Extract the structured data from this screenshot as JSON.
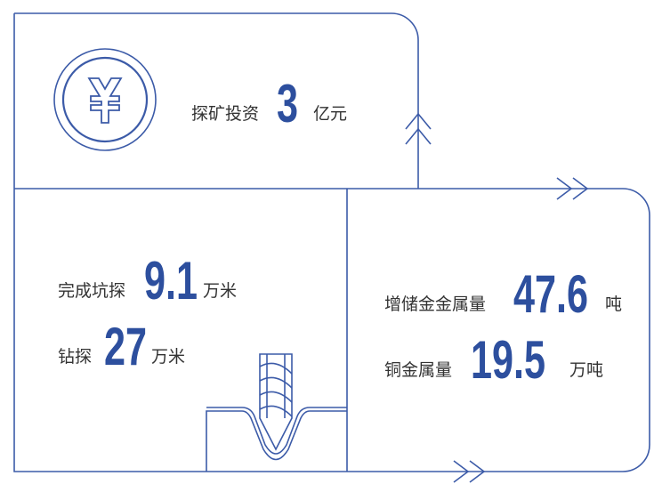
{
  "items": [
    {
      "label": "探矿投资",
      "number": "3",
      "unit": "亿元"
    },
    {
      "label": "完成坑探",
      "number": "9.1",
      "unit": "万米"
    },
    {
      "label": "钻探",
      "number": "27",
      "unit": "万米"
    },
    {
      "label": "增储金金属量",
      "number": "47.6",
      "unit": "吨"
    },
    {
      "label": "铜金属量",
      "number": "19.5",
      "unit": "万吨"
    }
  ]
}
